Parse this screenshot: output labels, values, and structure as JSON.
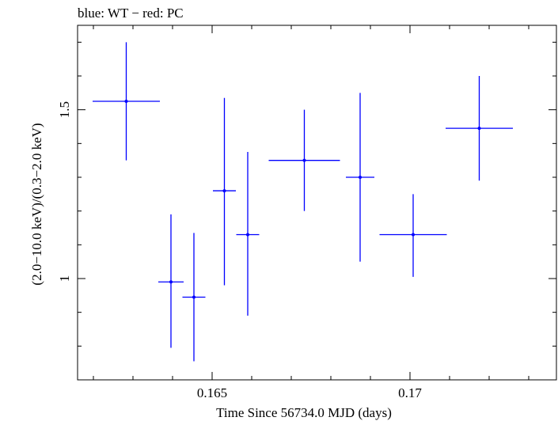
{
  "chart_data": {
    "type": "scatter",
    "title": "blue: WT − red: PC",
    "xlabel": "Time Since 56734.0 MJD (days)",
    "ylabel": "(2.0−10.0 keV)/(0.3−2.0 keV)",
    "xlim": [
      0.1616,
      0.1737
    ],
    "ylim": [
      0.7,
      1.75
    ],
    "xticks": [
      {
        "value": 0.165,
        "label": "0.165"
      },
      {
        "value": 0.17,
        "label": "0.17"
      }
    ],
    "yticks": [
      {
        "value": 1.0,
        "label": "1"
      },
      {
        "value": 1.5,
        "label": "1.5"
      }
    ],
    "xminor_step": 0.001,
    "yminor_step": 0.1,
    "series": [
      {
        "name": "WT",
        "color": "#0000ff",
        "points": [
          {
            "x": 0.16283,
            "xerr": 0.00085,
            "y": 1.525,
            "ylo": 1.35,
            "yhi": 1.7
          },
          {
            "x": 0.16396,
            "xerr": 0.00032,
            "y": 0.99,
            "ylo": 0.795,
            "yhi": 1.19
          },
          {
            "x": 0.16454,
            "xerr": 0.00029,
            "y": 0.945,
            "ylo": 0.755,
            "yhi": 1.135
          },
          {
            "x": 0.16531,
            "xerr": 0.00029,
            "y": 1.26,
            "ylo": 0.98,
            "yhi": 1.535
          },
          {
            "x": 0.1659,
            "xerr": 0.00029,
            "y": 1.13,
            "ylo": 0.89,
            "yhi": 1.375
          },
          {
            "x": 0.16733,
            "xerr": 0.0009,
            "y": 1.35,
            "ylo": 1.2,
            "yhi": 1.5
          },
          {
            "x": 0.16874,
            "xerr": 0.00036,
            "y": 1.3,
            "ylo": 1.05,
            "yhi": 1.55
          },
          {
            "x": 0.17008,
            "xerr": 0.00085,
            "y": 1.13,
            "ylo": 1.005,
            "yhi": 1.25
          },
          {
            "x": 0.17175,
            "xerr": 0.00085,
            "y": 1.445,
            "ylo": 1.29,
            "yhi": 1.6
          }
        ]
      }
    ]
  }
}
